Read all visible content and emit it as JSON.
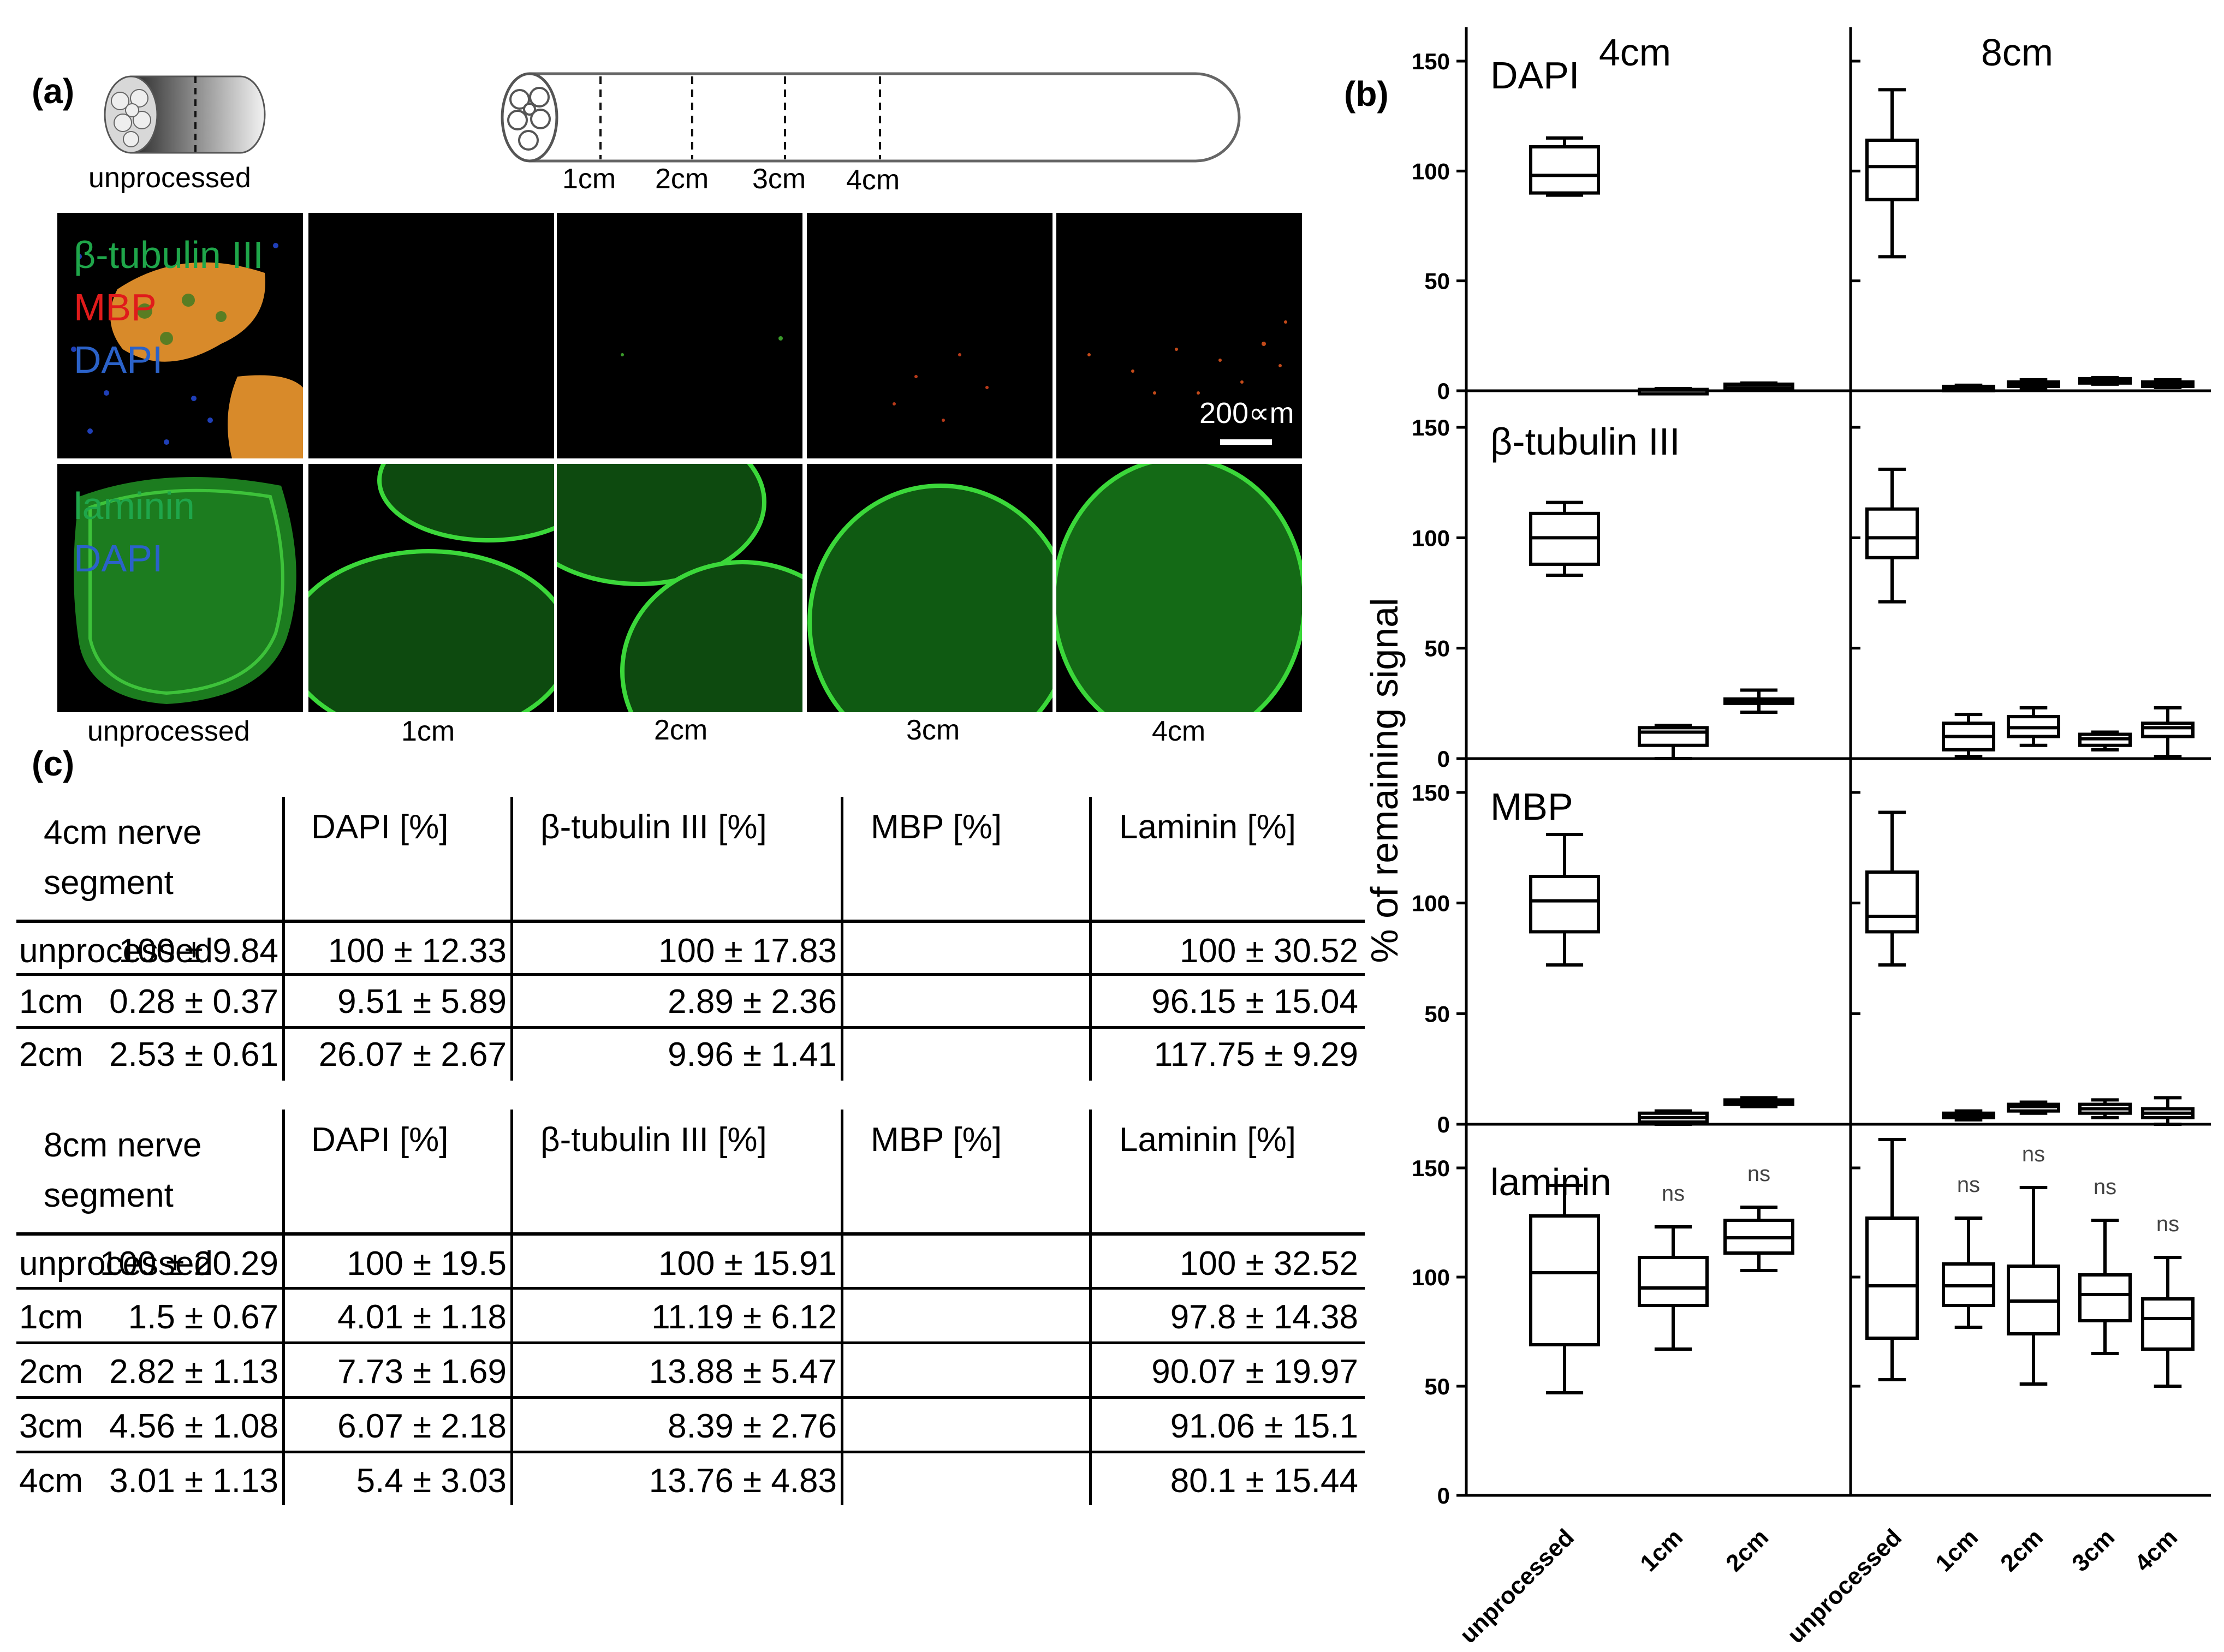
{
  "panel_a": {
    "label": "(a)",
    "unprocessed_caption": "unprocessed",
    "nerve_ticks": [
      "1cm",
      "2cm",
      "3cm",
      "4cm"
    ],
    "row1_stains": [
      {
        "text": "β-tubulin III",
        "color": "#1fa64a"
      },
      {
        "text": "MBP",
        "color": "#e01b1b"
      },
      {
        "text": "DAPI",
        "color": "#2b62c9"
      }
    ],
    "row2_stains": [
      {
        "text": "laminin",
        "color": "#1fa64a"
      },
      {
        "text": "DAPI",
        "color": "#2b62c9"
      }
    ],
    "scale_bar": "200∝m",
    "column_captions": [
      "unprocessed",
      "1cm",
      "2cm",
      "3cm",
      "4cm"
    ]
  },
  "panel_b": {
    "label": "(b)"
  },
  "panel_c": {
    "label": "(c)",
    "table_4cm": {
      "header": [
        "4cm nerve segment",
        "DAPI [%]",
        "β-tubulin III [%]",
        "MBP [%]",
        "Laminin [%]"
      ],
      "rows": [
        [
          "unprocessed",
          "100 ± 9.84",
          "100 ± 12.33",
          "100 ± 17.83",
          "100 ± 30.52"
        ],
        [
          "1cm",
          "0.28 ± 0.37",
          "9.51 ± 5.89",
          "2.89 ± 2.36",
          "96.15 ± 15.04"
        ],
        [
          "2cm",
          "2.53 ± 0.61",
          "26.07 ± 2.67",
          "9.96 ± 1.41",
          "117.75 ± 9.29"
        ]
      ]
    },
    "table_8cm": {
      "header": [
        "8cm nerve segment",
        "DAPI [%]",
        "β-tubulin III [%]",
        "MBP [%]",
        "Laminin [%]"
      ],
      "rows": [
        [
          "unprocessed",
          "100 ± 20.29",
          "100 ± 19.5",
          "100 ± 15.91",
          "100 ± 32.52"
        ],
        [
          "1cm",
          "1.5 ± 0.67",
          "4.01 ± 1.18",
          "11.19 ± 6.12",
          "97.8 ± 14.38"
        ],
        [
          "2cm",
          "2.82 ± 1.13",
          "7.73 ± 1.69",
          "13.88 ± 5.47",
          "90.07 ± 19.97"
        ],
        [
          "3cm",
          "4.56 ± 1.08",
          "6.07 ± 2.18",
          "8.39 ± 2.76",
          "91.06 ± 15.1"
        ],
        [
          "4cm",
          "3.01 ± 1.13",
          "5.4 ± 3.03",
          "13.76 ± 4.83",
          "80.1 ± 15.44"
        ]
      ]
    }
  },
  "chart_data": [
    {
      "type": "box",
      "title": "DAPI",
      "column_labels": [
        "4cm",
        "8cm"
      ],
      "ylabel": "% of remaining signal",
      "ylim": [
        0,
        150
      ],
      "yticks": [
        0,
        50,
        100,
        150
      ],
      "groups": [
        {
          "column": "4cm",
          "boxes": [
            {
              "category": "unprocessed",
              "min": 89,
              "q1": 90,
              "median": 98,
              "q3": 111,
              "max": 115
            },
            {
              "category": "1cm",
              "min": 0,
              "q1": 0,
              "median": 0.3,
              "q3": 0.6,
              "max": 1
            },
            {
              "category": "2cm",
              "min": 1.5,
              "q1": 2,
              "median": 2.5,
              "q3": 3,
              "max": 3.5
            }
          ]
        },
        {
          "column": "8cm",
          "boxes": [
            {
              "category": "unprocessed",
              "min": 61,
              "q1": 87,
              "median": 102,
              "q3": 114,
              "max": 137
            },
            {
              "category": "1cm",
              "min": 0.5,
              "q1": 1,
              "median": 1.5,
              "q3": 2,
              "max": 2.5
            },
            {
              "category": "2cm",
              "min": 1,
              "q1": 2,
              "median": 3,
              "q3": 4,
              "max": 5
            },
            {
              "category": "3cm",
              "min": 3,
              "q1": 4,
              "median": 4.5,
              "q3": 5.5,
              "max": 6
            },
            {
              "category": "4cm",
              "min": 1.5,
              "q1": 2,
              "median": 3,
              "q3": 4,
              "max": 5
            }
          ]
        }
      ]
    },
    {
      "type": "box",
      "title": "β-tubulin III",
      "ylim": [
        0,
        150
      ],
      "yticks": [
        0,
        50,
        100,
        150
      ],
      "groups": [
        {
          "column": "4cm",
          "boxes": [
            {
              "category": "unprocessed",
              "min": 83,
              "q1": 88,
              "median": 100,
              "q3": 111,
              "max": 116
            },
            {
              "category": "1cm",
              "min": 0,
              "q1": 6,
              "median": 12,
              "q3": 14,
              "max": 15
            },
            {
              "category": "2cm",
              "min": 21,
              "q1": 25,
              "median": 26,
              "q3": 27,
              "max": 31
            }
          ]
        },
        {
          "column": "8cm",
          "boxes": [
            {
              "category": "unprocessed",
              "min": 71,
              "q1": 91,
              "median": 100,
              "q3": 113,
              "max": 131
            },
            {
              "category": "1cm",
              "min": 1,
              "q1": 4,
              "median": 10,
              "q3": 16,
              "max": 20
            },
            {
              "category": "2cm",
              "min": 6,
              "q1": 10,
              "median": 14,
              "q3": 19,
              "max": 23
            },
            {
              "category": "3cm",
              "min": 4,
              "q1": 6,
              "median": 9,
              "q3": 11,
              "max": 12
            },
            {
              "category": "4cm",
              "min": 1,
              "q1": 10,
              "median": 14,
              "q3": 16,
              "max": 23
            }
          ]
        }
      ]
    },
    {
      "type": "box",
      "title": "MBP",
      "ylim": [
        0,
        150
      ],
      "yticks": [
        0,
        50,
        100,
        150
      ],
      "groups": [
        {
          "column": "4cm",
          "boxes": [
            {
              "category": "unprocessed",
              "min": 72,
              "q1": 87,
              "median": 101,
              "q3": 112,
              "max": 131
            },
            {
              "category": "1cm",
              "min": 0,
              "q1": 1,
              "median": 3,
              "q3": 5,
              "max": 6
            },
            {
              "category": "2cm",
              "min": 8,
              "q1": 9,
              "median": 10,
              "q3": 11,
              "max": 12
            }
          ]
        },
        {
          "column": "8cm",
          "boxes": [
            {
              "category": "unprocessed",
              "min": 72,
              "q1": 87,
              "median": 94,
              "q3": 114,
              "max": 141
            },
            {
              "category": "1cm",
              "min": 2,
              "q1": 3,
              "median": 4,
              "q3": 5,
              "max": 6
            },
            {
              "category": "2cm",
              "min": 5,
              "q1": 6,
              "median": 8,
              "q3": 9,
              "max": 10
            },
            {
              "category": "3cm",
              "min": 3,
              "q1": 5,
              "median": 7,
              "q3": 9,
              "max": 11
            },
            {
              "category": "4cm",
              "min": 0,
              "q1": 3,
              "median": 5,
              "q3": 7,
              "max": 12
            }
          ]
        }
      ]
    },
    {
      "type": "box",
      "title": "laminin",
      "ylim": [
        0,
        150
      ],
      "yticks": [
        0,
        50,
        100,
        150
      ],
      "x_tick_labels": [
        "unprocessed",
        "1cm",
        "2cm",
        "unprocessed",
        "1cm",
        "2cm",
        "3cm",
        "4cm"
      ],
      "significance_label": "ns",
      "groups": [
        {
          "column": "4cm",
          "boxes": [
            {
              "category": "unprocessed",
              "min": 47,
              "q1": 69,
              "median": 102,
              "q3": 128,
              "max": 142,
              "annotation": ""
            },
            {
              "category": "1cm",
              "min": 67,
              "q1": 87,
              "median": 95,
              "q3": 109,
              "max": 123,
              "annotation": "ns"
            },
            {
              "category": "2cm",
              "min": 103,
              "q1": 111,
              "median": 118,
              "q3": 126,
              "max": 132,
              "annotation": "ns"
            }
          ]
        },
        {
          "column": "8cm",
          "boxes": [
            {
              "category": "unprocessed",
              "min": 53,
              "q1": 72,
              "median": 96,
              "q3": 127,
              "max": 163,
              "annotation": ""
            },
            {
              "category": "1cm",
              "min": 77,
              "q1": 87,
              "median": 96,
              "q3": 106,
              "max": 127,
              "annotation": "ns"
            },
            {
              "category": "2cm",
              "min": 51,
              "q1": 74,
              "median": 89,
              "q3": 105,
              "max": 141,
              "annotation": "ns"
            },
            {
              "category": "3cm",
              "min": 65,
              "q1": 80,
              "median": 92,
              "q3": 101,
              "max": 126,
              "annotation": "ns"
            },
            {
              "category": "4cm",
              "min": 50,
              "q1": 67,
              "median": 81,
              "q3": 90,
              "max": 109,
              "annotation": "ns"
            }
          ]
        }
      ]
    }
  ]
}
